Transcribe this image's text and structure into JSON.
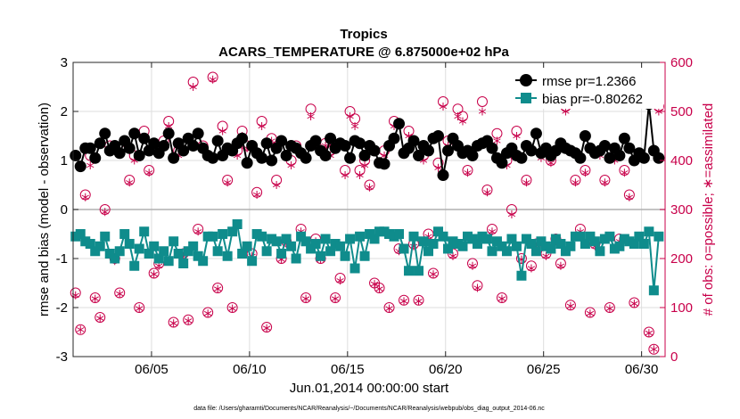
{
  "chart_data": {
    "type": "line",
    "title": "Tropics",
    "subtitle": "ACARS_TEMPERATURE @ 6.875000e+02 hPa",
    "xlabel": "Jun.01,2014 00:00:00 start",
    "ylabel_left": "rmse and bias (model - observation)",
    "ylabel_right": "# of obs: o=possible; ∗=assimilated",
    "footnote": "data file: /Users/gharamti/Documents/NCAR/Reanalysis/~/Documents/NCAR/Reanalysis/webpub/obs_diag_output_2014-06.nc",
    "xlim": [
      1.0,
      31.2
    ],
    "ylim_left": [
      -3,
      3
    ],
    "ylim_right": [
      0,
      600
    ],
    "grid": true,
    "x_ticks": [
      5,
      10,
      15,
      20,
      25,
      30
    ],
    "x_tick_labels": [
      "06/05",
      "06/10",
      "06/15",
      "06/20",
      "06/25",
      "06/30"
    ],
    "y_left_ticks": [
      -3,
      -2,
      -1,
      0,
      1,
      2,
      3
    ],
    "y_left_tick_labels": [
      "-3",
      "-2",
      "-1",
      "0",
      "1",
      "2",
      "3"
    ],
    "y_right_ticks": [
      0,
      100,
      200,
      300,
      400,
      500,
      600
    ],
    "y_right_tick_labels": [
      "0",
      "100",
      "200",
      "300",
      "400",
      "500",
      "600"
    ],
    "zero_line": 0,
    "legend_position": "top-right",
    "colors": {
      "rmse": "#000000",
      "bias": "#0f8c8c",
      "obs": "#c8004a",
      "zero": "#b0b0b0",
      "grid": "#dedede"
    },
    "series": [
      {
        "name": "rmse pr=1.2366",
        "axis": "left",
        "x": [
          1.125,
          1.375,
          1.625,
          1.875,
          2.125,
          2.375,
          2.625,
          2.875,
          3.125,
          3.375,
          3.625,
          3.875,
          4.125,
          4.375,
          4.625,
          4.875,
          5.125,
          5.375,
          5.625,
          5.875,
          6.125,
          6.375,
          6.625,
          6.875,
          7.125,
          7.375,
          7.625,
          7.875,
          8.125,
          8.375,
          8.625,
          8.875,
          9.125,
          9.375,
          9.625,
          9.875,
          10.125,
          10.375,
          10.625,
          10.875,
          11.125,
          11.375,
          11.625,
          11.875,
          12.125,
          12.375,
          12.625,
          12.875,
          13.125,
          13.375,
          13.625,
          13.875,
          14.125,
          14.375,
          14.625,
          14.875,
          15.125,
          15.375,
          15.625,
          15.875,
          16.125,
          16.375,
          16.625,
          16.875,
          17.125,
          17.375,
          17.625,
          17.875,
          18.125,
          18.375,
          18.625,
          18.875,
          19.125,
          19.375,
          19.625,
          19.875,
          20.125,
          20.375,
          20.625,
          20.875,
          21.125,
          21.375,
          21.625,
          21.875,
          22.125,
          22.375,
          22.625,
          22.875,
          23.125,
          23.375,
          23.625,
          23.875,
          24.125,
          24.375,
          24.625,
          24.875,
          25.125,
          25.375,
          25.625,
          25.875,
          26.125,
          26.375,
          26.625,
          26.875,
          27.125,
          27.375,
          27.625,
          27.875,
          28.125,
          28.375,
          28.625,
          28.875,
          29.125,
          29.375,
          29.625,
          29.875,
          30.125,
          30.375,
          30.625,
          30.875
        ],
        "values": [
          1.1,
          0.88,
          1.25,
          1.25,
          1.05,
          1.35,
          1.55,
          1.2,
          1.3,
          1.15,
          1.4,
          1.25,
          1.55,
          1.1,
          1.45,
          1.2,
          1.35,
          1.15,
          1.3,
          1.55,
          1.05,
          1.35,
          1.2,
          1.45,
          1.3,
          1.55,
          1.25,
          1.1,
          1.05,
          1.4,
          1.1,
          1.25,
          1.2,
          1.35,
          1.45,
          0.95,
          1.3,
          1.15,
          1.05,
          1.35,
          1.0,
          1.25,
          1.4,
          1.1,
          1.3,
          1.25,
          1.15,
          1.05,
          1.3,
          1.4,
          1.2,
          1.1,
          1.45,
          1.25,
          1.35,
          1.3,
          1.05,
          1.4,
          1.35,
          1.1,
          1.3,
          1.2,
          0.95,
          0.93,
          1.3,
          1.45,
          1.75,
          1.15,
          1.25,
          1.4,
          1.1,
          1.3,
          1.2,
          1.45,
          1.5,
          0.7,
          1.2,
          1.45,
          1.3,
          1.15,
          1.2,
          1.1,
          1.3,
          1.35,
          1.4,
          1.25,
          1.05,
          0.95,
          1.15,
          1.25,
          1.1,
          1.05,
          1.3,
          1.2,
          1.55,
          1.15,
          1.25,
          1.1,
          1.2,
          1.35,
          1.25,
          1.2,
          1.15,
          1.05,
          1.5,
          1.25,
          1.15,
          1.2,
          1.3,
          1.05,
          1.25,
          1.1,
          1.45,
          1.25,
          1.0,
          1.15,
          1.05,
          2.15,
          1.2,
          1.05
        ]
      },
      {
        "name": "bias pr=-0.80262",
        "axis": "left",
        "x": [
          1.125,
          1.375,
          1.625,
          1.875,
          2.125,
          2.375,
          2.625,
          2.875,
          3.125,
          3.375,
          3.625,
          3.875,
          4.125,
          4.375,
          4.625,
          4.875,
          5.125,
          5.375,
          5.625,
          5.875,
          6.125,
          6.375,
          6.625,
          6.875,
          7.125,
          7.375,
          7.625,
          7.875,
          8.125,
          8.375,
          8.625,
          8.875,
          9.125,
          9.375,
          9.625,
          9.875,
          10.125,
          10.375,
          10.625,
          10.875,
          11.125,
          11.375,
          11.625,
          11.875,
          12.125,
          12.375,
          12.625,
          12.875,
          13.125,
          13.375,
          13.625,
          13.875,
          14.125,
          14.375,
          14.625,
          14.875,
          15.125,
          15.375,
          15.625,
          15.875,
          16.125,
          16.375,
          16.625,
          16.875,
          17.125,
          17.375,
          17.625,
          17.875,
          18.125,
          18.375,
          18.625,
          18.875,
          19.125,
          19.375,
          19.625,
          19.875,
          20.125,
          20.375,
          20.625,
          20.875,
          21.125,
          21.375,
          21.625,
          21.875,
          22.125,
          22.375,
          22.625,
          22.875,
          23.125,
          23.375,
          23.625,
          23.875,
          24.125,
          24.375,
          24.625,
          24.875,
          25.125,
          25.375,
          25.625,
          25.875,
          26.125,
          26.375,
          26.625,
          26.875,
          27.125,
          27.375,
          27.625,
          27.875,
          28.125,
          28.375,
          28.625,
          28.875,
          29.125,
          29.375,
          29.625,
          29.875,
          30.125,
          30.375,
          30.625,
          30.875
        ],
        "values": [
          -0.55,
          -0.5,
          -0.65,
          -0.7,
          -0.85,
          -0.75,
          -0.55,
          -0.9,
          -1.0,
          -0.85,
          -0.5,
          -0.7,
          -1.15,
          -0.8,
          -0.45,
          -0.9,
          -0.75,
          -1.0,
          -0.85,
          -1.05,
          -0.65,
          -0.9,
          -1.1,
          -0.85,
          -0.75,
          -0.95,
          -1.05,
          -0.55,
          -0.55,
          -0.85,
          -0.5,
          -0.95,
          -0.45,
          -0.3,
          -0.9,
          -0.75,
          -1.05,
          -0.5,
          -0.55,
          -0.85,
          -0.6,
          -0.65,
          -0.9,
          -0.6,
          -0.75,
          -1.0,
          -0.55,
          -0.65,
          -0.8,
          -0.7,
          -0.95,
          -0.6,
          -0.85,
          -0.7,
          -0.75,
          -0.95,
          -0.6,
          -1.2,
          -0.55,
          -0.95,
          -0.5,
          -0.6,
          -0.45,
          -0.45,
          -0.5,
          -0.55,
          -0.5,
          -0.8,
          -1.25,
          -0.55,
          -1.25,
          -0.65,
          -0.85,
          -0.7,
          -0.45,
          -0.55,
          -0.8,
          -0.65,
          -0.7,
          -0.75,
          -0.55,
          -0.6,
          -0.7,
          -0.55,
          -0.6,
          -0.85,
          -0.65,
          -0.75,
          -0.85,
          -0.6,
          -0.75,
          -1.35,
          -0.6,
          -0.7,
          -0.85,
          -0.65,
          -0.75,
          -0.8,
          -0.6,
          -0.7,
          -0.85,
          -0.75,
          -0.55,
          -0.55,
          -0.7,
          -0.55,
          -0.65,
          -0.85,
          -0.6,
          -0.55,
          -0.8,
          -0.75,
          -0.6,
          -0.65,
          -0.7,
          -0.55,
          -0.7,
          -0.45,
          -1.65,
          -0.55
        ]
      }
    ],
    "obs_possible": {
      "axis": "right",
      "x": [
        1.125,
        1.375,
        1.625,
        1.875,
        2.125,
        2.375,
        2.625,
        2.875,
        3.125,
        3.375,
        3.625,
        3.875,
        4.125,
        4.375,
        4.625,
        4.875,
        5.125,
        5.375,
        5.625,
        5.875,
        6.125,
        6.375,
        6.625,
        6.875,
        7.125,
        7.375,
        7.625,
        7.875,
        8.125,
        8.375,
        8.625,
        8.875,
        9.125,
        9.375,
        9.625,
        9.875,
        10.125,
        10.375,
        10.625,
        10.875,
        11.125,
        11.375,
        11.625,
        11.875,
        12.125,
        12.375,
        12.625,
        12.875,
        13.125,
        13.375,
        13.625,
        13.875,
        14.125,
        14.375,
        14.625,
        14.875,
        15.125,
        15.375,
        15.625,
        15.875,
        16.125,
        16.375,
        16.625,
        16.875,
        17.125,
        17.375,
        17.625,
        17.875,
        18.125,
        18.375,
        18.625,
        18.875,
        19.125,
        19.375,
        19.625,
        19.875,
        20.125,
        20.375,
        20.625,
        20.875,
        21.125,
        21.375,
        21.625,
        21.875,
        22.125,
        22.375,
        22.625,
        22.875,
        23.125,
        23.375,
        23.625,
        23.875,
        24.125,
        24.375,
        24.625,
        24.875,
        25.125,
        25.375,
        25.625,
        25.875,
        26.125,
        26.375,
        26.625,
        26.875,
        27.125,
        27.375,
        27.625,
        27.875,
        28.125,
        28.375,
        28.625,
        28.875,
        29.125,
        29.375,
        29.625,
        29.875,
        30.125,
        30.375,
        30.625,
        30.875
      ],
      "values": [
        130,
        55,
        330,
        410,
        120,
        80,
        300,
        430,
        200,
        130,
        440,
        360,
        410,
        100,
        460,
        380,
        170,
        190,
        440,
        480,
        70,
        420,
        210,
        75,
        560,
        260,
        430,
        90,
        570,
        140,
        470,
        360,
        100,
        420,
        460,
        430,
        210,
        335,
        480,
        60,
        445,
        360,
        200,
        235,
        400,
        430,
        260,
        120,
        505,
        240,
        200,
        435,
        420,
        120,
        160,
        380,
        500,
        485,
        380,
        400,
        350,
        150,
        140,
        420,
        100,
        480,
        220,
        115,
        460,
        230,
        115,
        410,
        250,
        170,
        395,
        520,
        440,
        210,
        505,
        490,
        380,
        190,
        145,
        520,
        340,
        260,
        455,
        120,
        400,
        300,
        460,
        200,
        360,
        185,
        230,
        415,
        210,
        400,
        240,
        190,
        510,
        105,
        360,
        260,
        380,
        90,
        230,
        420,
        360,
        100,
        410,
        240,
        380,
        330,
        110,
        415,
        540,
        50,
        15,
        510
      ]
    },
    "obs_assimilated": {
      "axis": "right",
      "x": [
        1.125,
        1.375,
        1.625,
        1.875,
        2.125,
        2.375,
        2.625,
        2.875,
        3.125,
        3.375,
        3.625,
        3.875,
        4.125,
        4.375,
        4.625,
        4.875,
        5.125,
        5.375,
        5.625,
        5.875,
        6.125,
        6.375,
        6.625,
        6.875,
        7.125,
        7.375,
        7.625,
        7.875,
        8.125,
        8.375,
        8.625,
        8.875,
        9.125,
        9.375,
        9.625,
        9.875,
        10.125,
        10.375,
        10.625,
        10.875,
        11.125,
        11.375,
        11.625,
        11.875,
        12.125,
        12.375,
        12.625,
        12.875,
        13.125,
        13.375,
        13.625,
        13.875,
        14.125,
        14.375,
        14.625,
        14.875,
        15.125,
        15.375,
        15.625,
        15.875,
        16.125,
        16.375,
        16.625,
        16.875,
        17.125,
        17.375,
        17.625,
        17.875,
        18.125,
        18.375,
        18.625,
        18.875,
        19.125,
        19.375,
        19.625,
        19.875,
        20.125,
        20.375,
        20.625,
        20.875,
        21.125,
        21.375,
        21.625,
        21.875,
        22.125,
        22.375,
        22.625,
        22.875,
        23.125,
        23.375,
        23.625,
        23.875,
        24.125,
        24.375,
        24.625,
        24.875,
        25.125,
        25.375,
        25.625,
        25.875,
        26.125,
        26.375,
        26.625,
        26.875,
        27.125,
        27.375,
        27.625,
        27.875,
        28.125,
        28.375,
        28.625,
        28.875,
        29.125,
        29.375,
        29.625,
        29.875,
        30.125,
        30.375,
        30.625,
        30.875
      ],
      "values": [
        125,
        55,
        325,
        390,
        118,
        78,
        295,
        425,
        195,
        128,
        430,
        355,
        400,
        98,
        445,
        375,
        168,
        185,
        430,
        470,
        68,
        410,
        205,
        73,
        550,
        255,
        420,
        88,
        565,
        138,
        460,
        355,
        98,
        410,
        450,
        425,
        205,
        330,
        470,
        58,
        440,
        350,
        198,
        230,
        390,
        420,
        255,
        118,
        490,
        235,
        198,
        430,
        410,
        118,
        155,
        370,
        490,
        470,
        370,
        390,
        345,
        148,
        138,
        410,
        98,
        470,
        215,
        113,
        450,
        225,
        113,
        400,
        245,
        168,
        385,
        510,
        430,
        205,
        490,
        480,
        375,
        185,
        140,
        500,
        335,
        255,
        440,
        118,
        390,
        290,
        450,
        198,
        355,
        180,
        225,
        405,
        205,
        395,
        235,
        185,
        500,
        103,
        355,
        255,
        375,
        88,
        225,
        410,
        355,
        98,
        400,
        235,
        375,
        325,
        108,
        405,
        530,
        48,
        15,
        500
      ]
    }
  }
}
